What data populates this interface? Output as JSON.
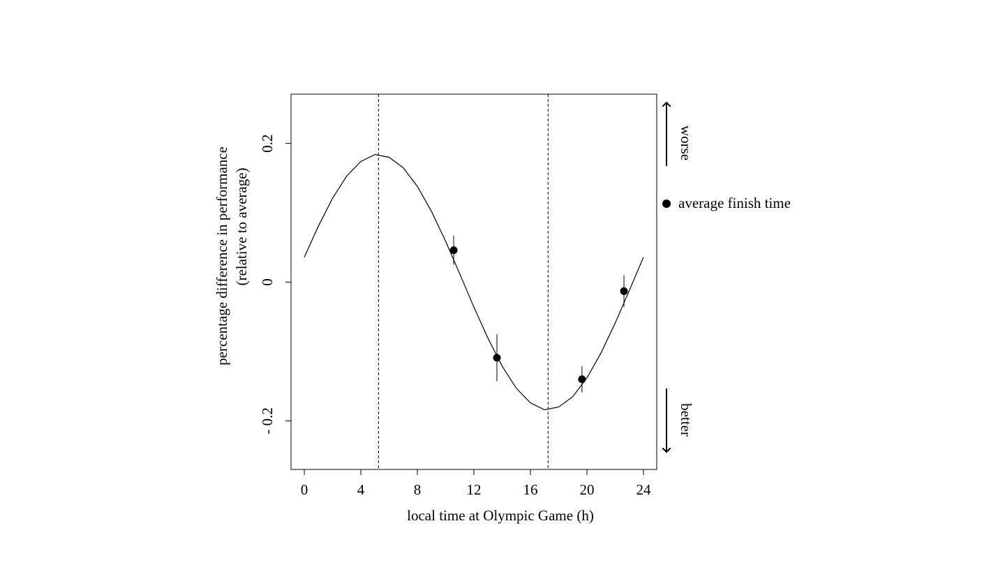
{
  "chart_data": {
    "type": "line",
    "x_label": "local time at Olympic Game (h)",
    "y_label": [
      "percentage difference in performance",
      "(relative to average)"
    ],
    "annotations": {
      "up": "worse",
      "down": "better"
    },
    "xlim": [
      -0.94,
      24.94
    ],
    "xticks": [
      0,
      4,
      8,
      12,
      16,
      20,
      24
    ],
    "ylim": [
      -0.27,
      0.271
    ],
    "yticks": [
      {
        "value": -0.2,
        "label": "- 0.2"
      },
      0,
      0.2
    ],
    "vlines": [
      5.25,
      17.25
    ],
    "series": [
      {
        "type": "line",
        "color": "#000000",
        "x": [
          0,
          1,
          2,
          3,
          4,
          5,
          6,
          7,
          8,
          9,
          10,
          11,
          12,
          13,
          14,
          15,
          16,
          17,
          18,
          19,
          20,
          21,
          22,
          23,
          24
        ],
        "values": [
          0.036,
          0.081,
          0.121,
          0.153,
          0.174,
          0.184,
          0.18,
          0.165,
          0.138,
          0.102,
          0.059,
          0.012,
          -0.036,
          -0.081,
          -0.121,
          -0.153,
          -0.174,
          -0.184,
          -0.18,
          -0.165,
          -0.138,
          -0.102,
          -0.059,
          -0.012,
          0.036
        ]
      },
      {
        "type": "scatter",
        "name": "average finish time",
        "color": "#000000",
        "x": [
          10.57,
          13.63,
          19.65,
          22.62
        ],
        "values": [
          0.046,
          -0.109,
          -0.14,
          -0.013
        ],
        "errors": [
          0.021,
          0.034,
          0.019,
          0.023
        ]
      }
    ]
  }
}
